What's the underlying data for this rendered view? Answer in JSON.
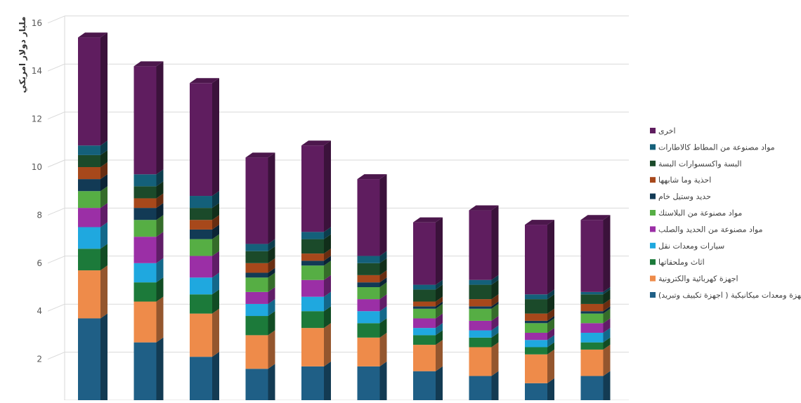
{
  "chart_data": {
    "type": "bar",
    "stacked": true,
    "style": "3d-columns",
    "title": "",
    "xlabel": "",
    "ylabel": "مليار دولار امريكي",
    "ylim": [
      0,
      16
    ],
    "yticks": [
      2,
      4,
      6,
      8,
      10,
      12,
      14,
      16
    ],
    "grid": true,
    "legend_position": "right",
    "categories": [
      "",
      "",
      "",
      "",
      "",
      "",
      "",
      "",
      "",
      ""
    ],
    "series": [
      {
        "name": "اجهزة ومعدات ميكانيكية ( اجهزة تكييف وتبريد)",
        "color": "#1f5f86",
        "values": [
          3.7,
          2.7,
          2.1,
          1.6,
          1.7,
          1.7,
          1.5,
          1.3,
          1.0,
          1.3
        ]
      },
      {
        "name": "اجهزة كهربائية والكترونية",
        "color": "#ee8b4a",
        "values": [
          2.0,
          1.7,
          1.8,
          1.4,
          1.6,
          1.2,
          1.1,
          1.2,
          1.2,
          1.1
        ]
      },
      {
        "name": "اثاث وملحقاتها",
        "color": "#1c7a3a",
        "values": [
          0.9,
          0.8,
          0.8,
          0.8,
          0.7,
          0.6,
          0.4,
          0.4,
          0.3,
          0.3
        ]
      },
      {
        "name": "سيارات ومعدات نقل",
        "color": "#1fa8df",
        "values": [
          0.9,
          0.8,
          0.7,
          0.5,
          0.6,
          0.5,
          0.3,
          0.3,
          0.3,
          0.4
        ]
      },
      {
        "name": "مواد مصنوعة من الحديد والصلب",
        "color": "#9b2fa6",
        "values": [
          0.8,
          1.1,
          0.9,
          0.5,
          0.7,
          0.5,
          0.4,
          0.4,
          0.3,
          0.4
        ]
      },
      {
        "name": "مواد مصنوعة من البلاستك",
        "color": "#56ae44",
        "values": [
          0.7,
          0.7,
          0.7,
          0.6,
          0.6,
          0.5,
          0.4,
          0.5,
          0.4,
          0.4
        ]
      },
      {
        "name": "حديد وستيل خام",
        "color": "#123a55",
        "values": [
          0.5,
          0.5,
          0.4,
          0.2,
          0.2,
          0.2,
          0.1,
          0.1,
          0.1,
          0.1
        ]
      },
      {
        "name": "احذية وما شابهها",
        "color": "#a7481b",
        "values": [
          0.5,
          0.4,
          0.4,
          0.4,
          0.3,
          0.3,
          0.2,
          0.3,
          0.3,
          0.3
        ]
      },
      {
        "name": "البسة واكسسوارات البسة",
        "color": "#1b4a2a",
        "values": [
          0.5,
          0.5,
          0.5,
          0.5,
          0.6,
          0.5,
          0.5,
          0.6,
          0.6,
          0.4
        ]
      },
      {
        "name": "مواد مصنوعة من المطاط كالاطارات",
        "color": "#14607a",
        "values": [
          0.4,
          0.5,
          0.5,
          0.3,
          0.3,
          0.3,
          0.2,
          0.2,
          0.2,
          0.1
        ]
      },
      {
        "name": "اخرى",
        "color": "#5f1d5f",
        "values": [
          4.5,
          4.5,
          4.7,
          3.6,
          3.6,
          3.2,
          2.6,
          2.9,
          2.9,
          3.0
        ]
      }
    ]
  }
}
